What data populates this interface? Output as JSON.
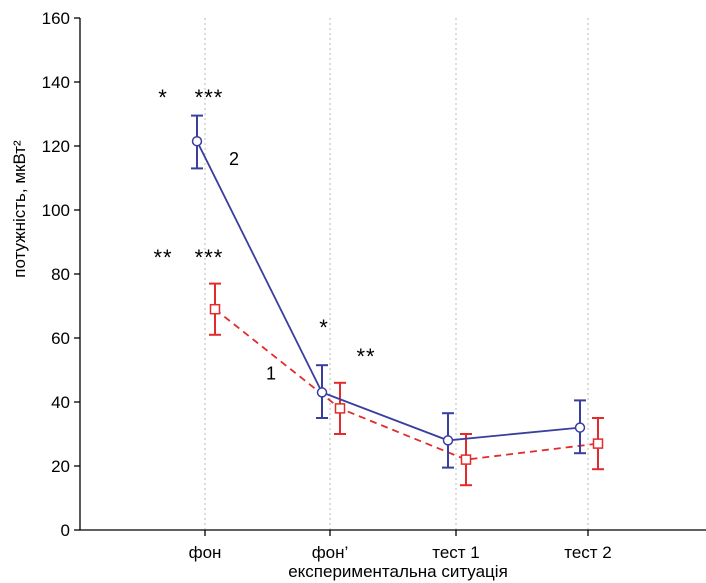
{
  "chart_data": {
    "type": "line",
    "xlabel": "експериментальна ситуація",
    "ylabel": "потужність, мкВт²",
    "categories": [
      "фон",
      "фон’",
      "тест 1",
      "тест 2"
    ],
    "ylim": [
      0,
      160
    ],
    "yticks": [
      0,
      20,
      40,
      60,
      80,
      100,
      120,
      140,
      160
    ],
    "grid": "dotted vertical at categories",
    "series": [
      {
        "name": "1",
        "color": "#e32b2b",
        "line_style": "dashed",
        "marker": "square",
        "values": [
          69,
          38,
          22,
          27
        ],
        "err_low": [
          61,
          30,
          14,
          19
        ],
        "err_high": [
          77,
          46,
          30,
          35
        ]
      },
      {
        "name": "2",
        "color": "#3a3f9e",
        "line_style": "solid",
        "marker": "circle",
        "values": [
          121.5,
          43,
          28,
          32
        ],
        "err_low": [
          113,
          35,
          19.5,
          24
        ],
        "err_high": [
          129.5,
          51.5,
          36.5,
          40.5
        ]
      }
    ],
    "annotations": [
      {
        "text": "*",
        "category_index": 0,
        "y": 136,
        "offset": "left"
      },
      {
        "text": "***",
        "category_index": 0,
        "y": 136,
        "offset": "right"
      },
      {
        "text": "**",
        "category_index": 0,
        "y": 86,
        "offset": "left"
      },
      {
        "text": "***",
        "category_index": 0,
        "y": 86,
        "offset": "right"
      },
      {
        "text": "*",
        "category_index": 1,
        "y": 64,
        "offset": "center"
      },
      {
        "text": "**",
        "category_index": 1,
        "y": 55,
        "offset": "right"
      }
    ]
  }
}
